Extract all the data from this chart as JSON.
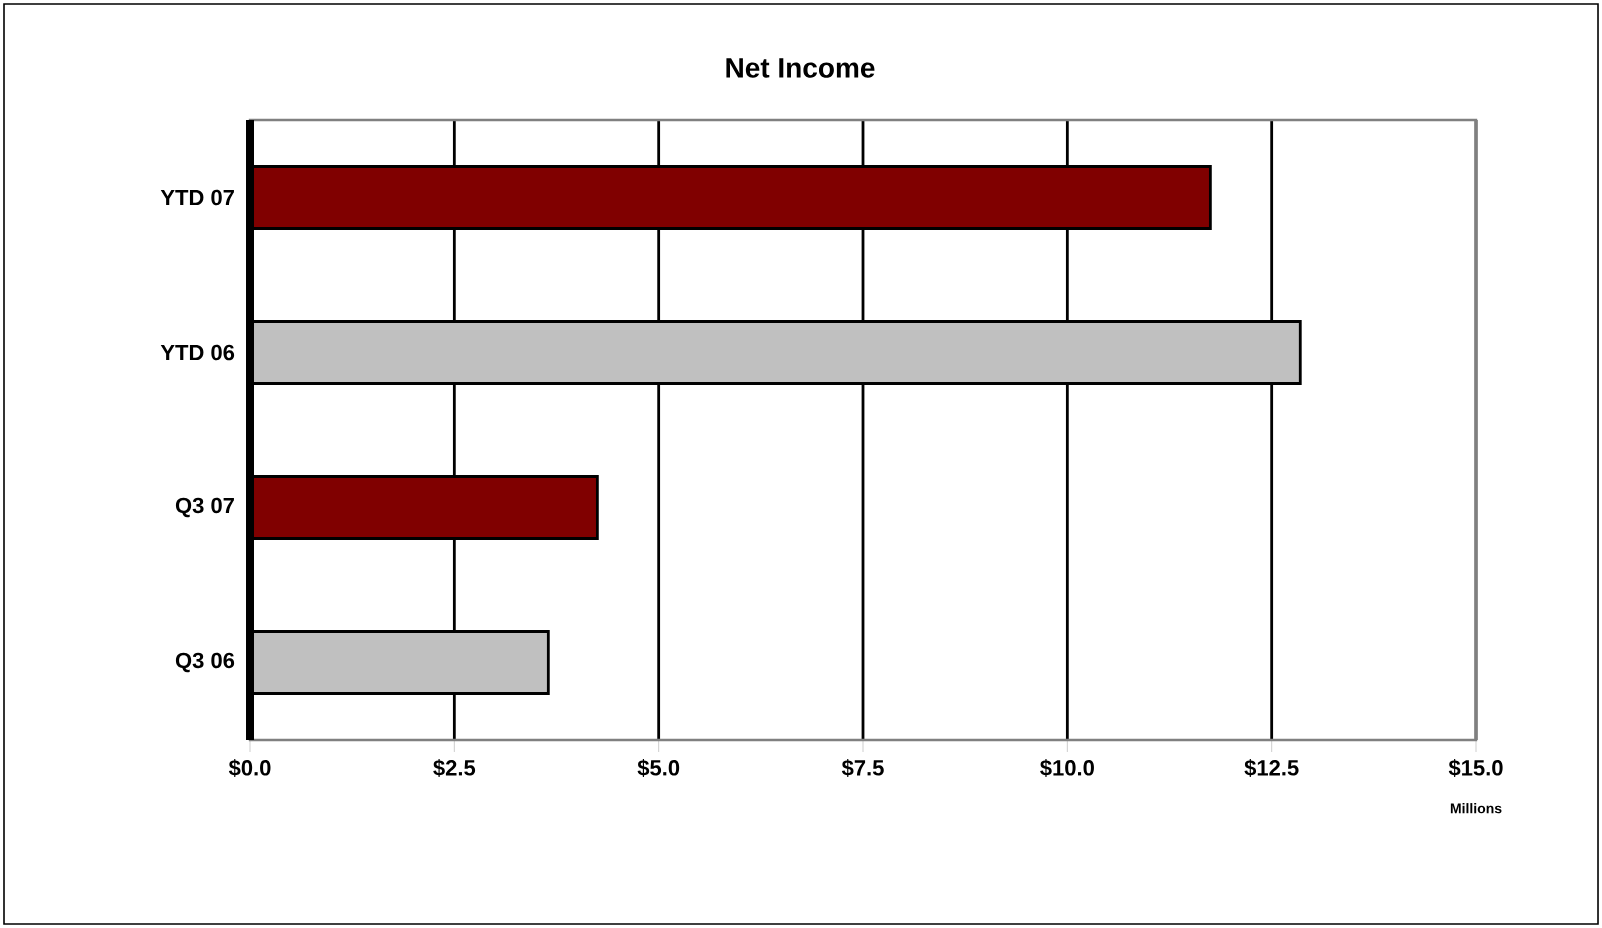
{
  "chart_data": {
    "type": "bar",
    "orientation": "horizontal",
    "title": "Net Income",
    "xlabel": "Millions",
    "categories": [
      "YTD 07",
      "YTD 06",
      "Q3 07",
      "Q3 06"
    ],
    "values": [
      11.75,
      12.85,
      4.25,
      3.65
    ],
    "colors": [
      "#800000",
      "#c0c0c0",
      "#800000",
      "#c0c0c0"
    ],
    "xlim": [
      0,
      15
    ],
    "xticks": [
      {
        "value": 0,
        "label": "$0.0"
      },
      {
        "value": 2.5,
        "label": "$2.5"
      },
      {
        "value": 5,
        "label": "$5.0"
      },
      {
        "value": 7.5,
        "label": "$7.5"
      },
      {
        "value": 10,
        "label": "$10.0"
      },
      {
        "value": 12.5,
        "label": "$12.5"
      },
      {
        "value": 15,
        "label": "$15.0"
      }
    ],
    "grid": "x"
  }
}
